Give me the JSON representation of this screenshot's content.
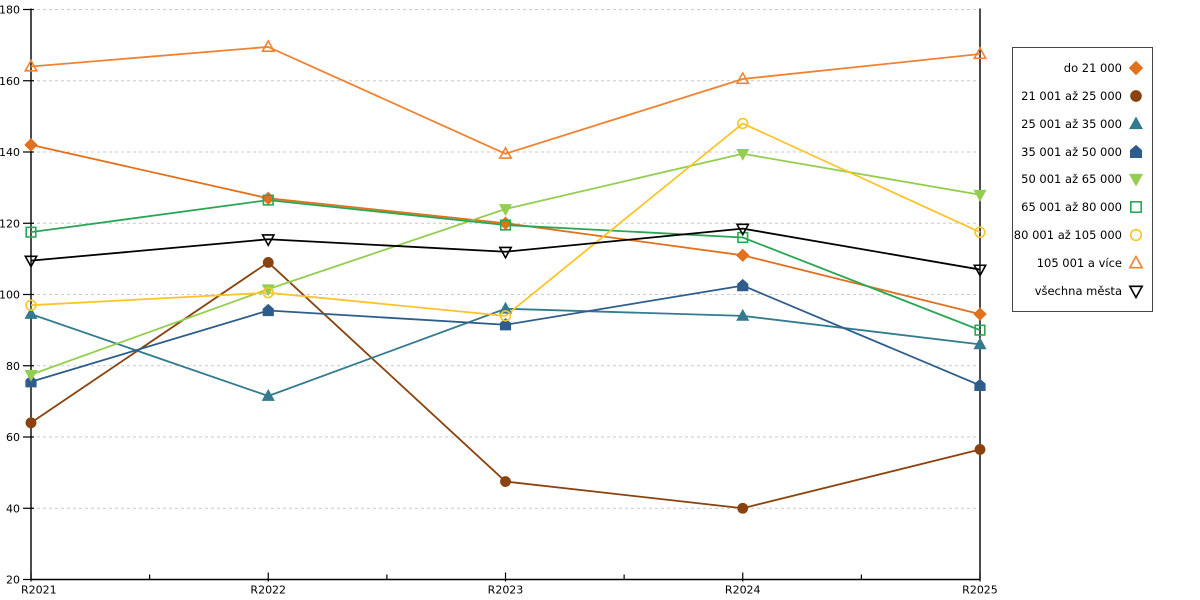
{
  "chart_data": {
    "type": "line",
    "title": "",
    "xlabel": "",
    "ylabel": "",
    "x_categories": [
      "R2021",
      "R2022",
      "R2023",
      "R2024",
      "R2025"
    ],
    "ylim": [
      20,
      180
    ],
    "y_ticks": [
      20,
      40,
      60,
      80,
      100,
      120,
      140,
      160,
      180
    ],
    "grid": "horizontal dashed",
    "legend_position": "right",
    "series": [
      {
        "name": "do 21 000",
        "color": "#E2701C",
        "marker": "diamond",
        "filled": true,
        "values": [
          142,
          127,
          120,
          111,
          94.5
        ]
      },
      {
        "name": "21 001 až 25 000",
        "color": "#8A430E",
        "marker": "circle",
        "filled": true,
        "values": [
          64,
          109,
          47.5,
          40,
          56.5
        ]
      },
      {
        "name": "25 001 až 35 000",
        "color": "#337B8E",
        "marker": "triangle-up",
        "filled": true,
        "values": [
          94.5,
          71.5,
          96,
          94,
          86
        ]
      },
      {
        "name": "35 001 až 50 000",
        "color": "#2E5D8C",
        "marker": "pentagon",
        "filled": true,
        "values": [
          75.5,
          95.5,
          91.5,
          102.5,
          74.5
        ]
      },
      {
        "name": "50 001 až 65 000",
        "color": "#93CE4F",
        "marker": "triangle-down",
        "filled": true,
        "values": [
          77.5,
          101.5,
          124,
          139.5,
          128
        ]
      },
      {
        "name": "65 001 až 80 000",
        "color": "#29A757",
        "marker": "square",
        "filled": false,
        "values": [
          117.5,
          126.5,
          119.5,
          116,
          90
        ]
      },
      {
        "name": "80 001 až 105 000",
        "color": "#FCC428",
        "marker": "circle",
        "filled": false,
        "values": [
          97,
          100.5,
          94,
          148,
          117.5
        ]
      },
      {
        "name": "105 001 a více",
        "color": "#F08232",
        "marker": "triangle-up",
        "filled": false,
        "values": [
          164,
          169.5,
          139.5,
          160.5,
          167.5
        ]
      },
      {
        "name": "všechna města",
        "color": "#000000",
        "marker": "triangle-down",
        "filled": false,
        "values": [
          109.5,
          115.5,
          112,
          118.5,
          107
        ]
      }
    ]
  },
  "style": {
    "gridline_color": "#c9c9c9",
    "axis_color": "#000000",
    "background": "#ffffff",
    "legend_border_color": "#444444"
  }
}
